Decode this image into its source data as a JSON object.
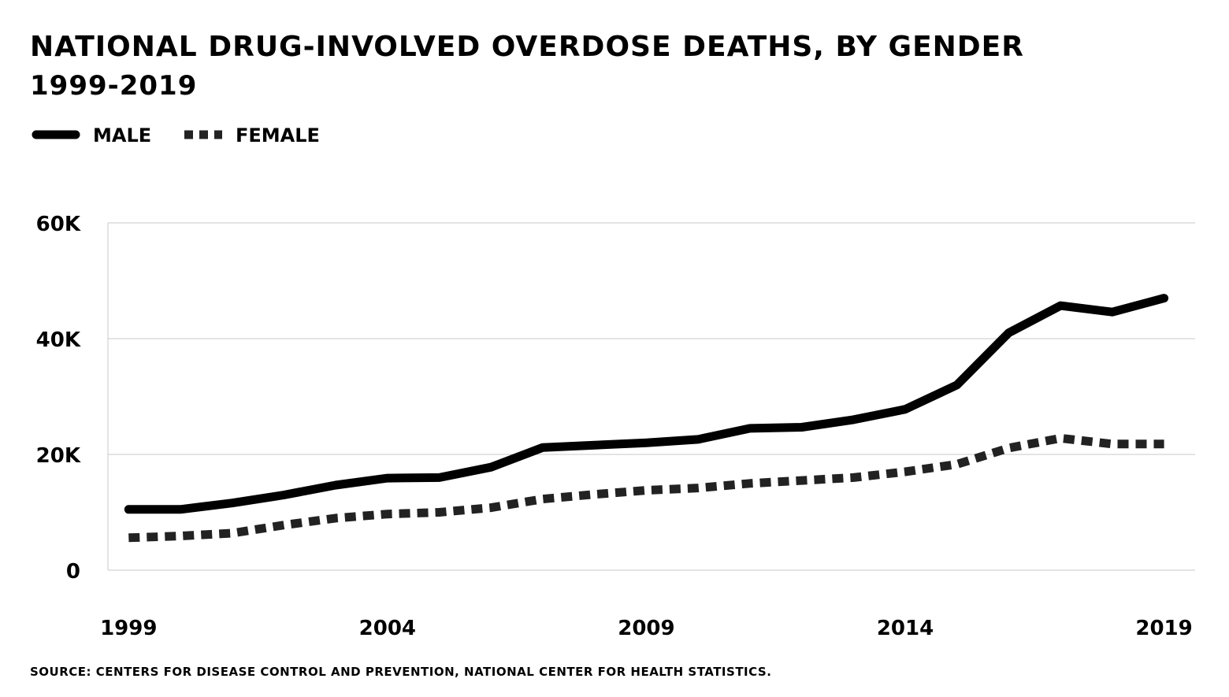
{
  "title": "NATIONAL DRUG-INVOLVED OVERDOSE DEATHS, BY GENDER",
  "subtitle": "1999-2019",
  "source": "SOURCE: CENTERS FOR DISEASE CONTROL AND PREVENTION, NATIONAL CENTER FOR HEALTH STATISTICS.",
  "chart_data": {
    "type": "line",
    "title": "NATIONAL DRUG-INVOLVED OVERDOSE DEATHS, BY GENDER",
    "subtitle": "1999-2019",
    "x": [
      1999,
      2000,
      2001,
      2002,
      2003,
      2004,
      2005,
      2006,
      2007,
      2008,
      2009,
      2010,
      2011,
      2012,
      2013,
      2014,
      2015,
      2016,
      2017,
      2018,
      2019
    ],
    "x_ticks": [
      1999,
      2004,
      2009,
      2014,
      2019
    ],
    "x_tick_labels": [
      "1999",
      "2004",
      "2009",
      "2014",
      "2019"
    ],
    "y_ticks": [
      0,
      20000,
      40000,
      60000
    ],
    "y_tick_labels": [
      "0",
      "20K",
      "40K",
      "60K"
    ],
    "ylim": [
      0,
      60000
    ],
    "xlabel": "",
    "ylabel": "",
    "legend_position": "top-left",
    "grid": true,
    "series": [
      {
        "name": "MALE",
        "style": "solid",
        "color": "#000000",
        "values": [
          10500,
          10500,
          11600,
          13000,
          14700,
          15900,
          16000,
          17800,
          21200,
          21600,
          22000,
          22600,
          24500,
          24700,
          26000,
          27800,
          32000,
          41000,
          45700,
          44600,
          47000
        ]
      },
      {
        "name": "FEMALE",
        "style": "dashed",
        "color": "#222222",
        "values": [
          5600,
          5900,
          6400,
          7800,
          9000,
          9700,
          10000,
          10800,
          12300,
          13100,
          13800,
          14200,
          15000,
          15500,
          16000,
          17000,
          18300,
          21100,
          22800,
          21800,
          21800
        ]
      }
    ]
  }
}
